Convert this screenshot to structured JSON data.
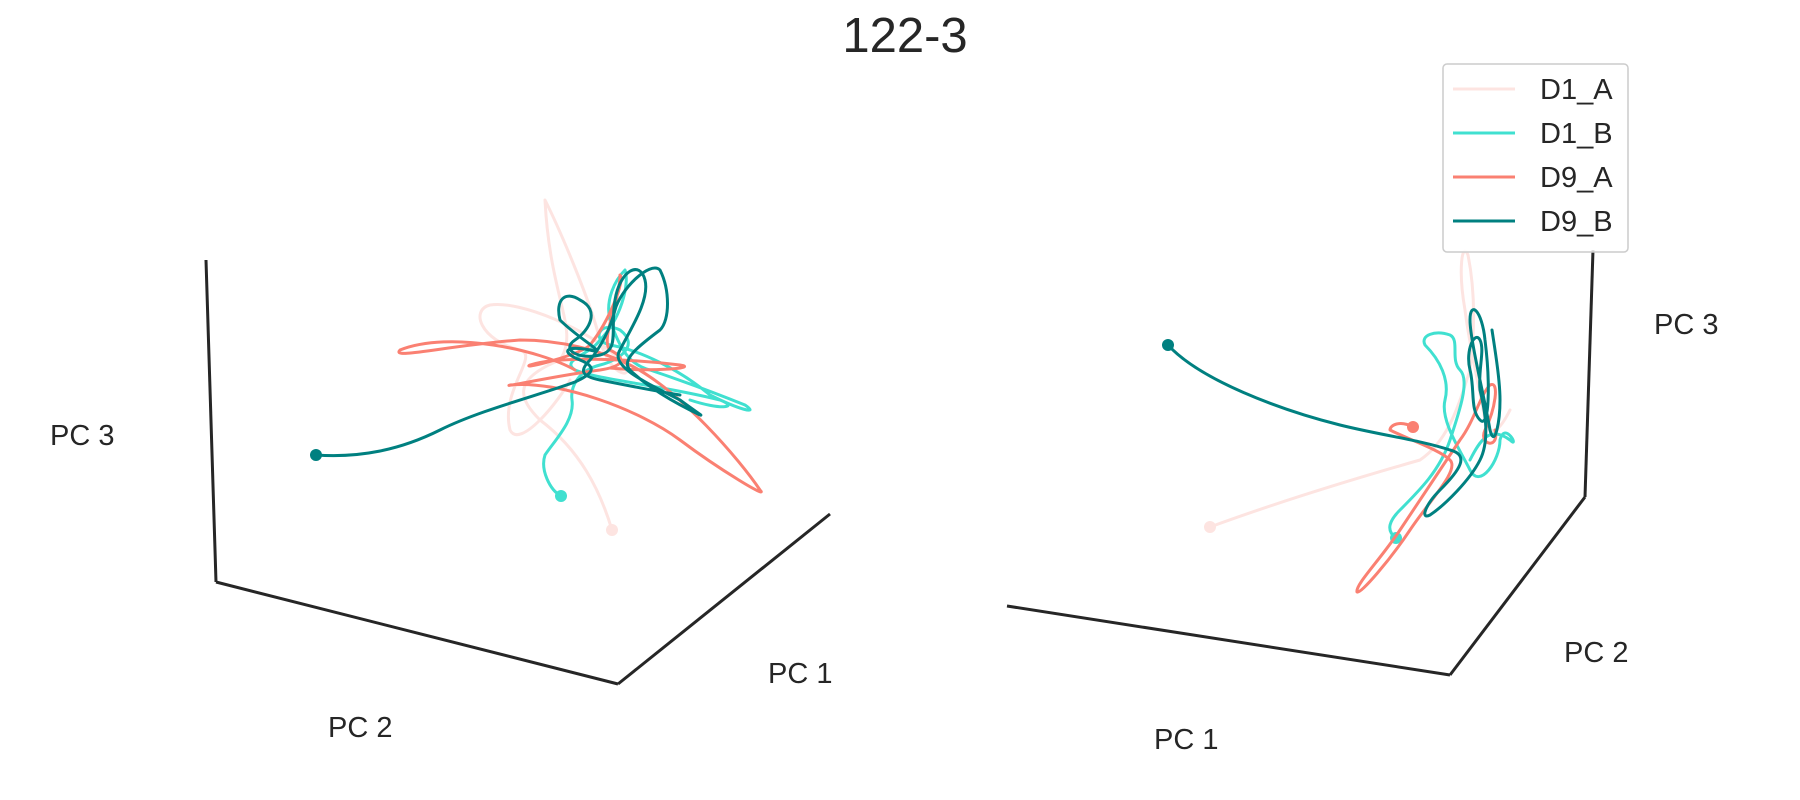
{
  "chart_data": {
    "type": "line",
    "title": "122-3",
    "legend_placement": "top-right",
    "grid": false,
    "series": [
      {
        "name": "D1_A",
        "color": "#fde4e1"
      },
      {
        "name": "D1_B",
        "color": "#40e0d0"
      },
      {
        "name": "D9_A",
        "color": "#fa8072"
      },
      {
        "name": "D9_B",
        "color": "#008080"
      }
    ],
    "panels": [
      {
        "view": "left",
        "axis_labels": {
          "x": "PC 1",
          "y": "PC 2",
          "z": "PC 3"
        }
      },
      {
        "view": "right",
        "axis_labels": {
          "x": "PC 1",
          "y": "PC 2",
          "z": "PC 3"
        }
      }
    ]
  }
}
